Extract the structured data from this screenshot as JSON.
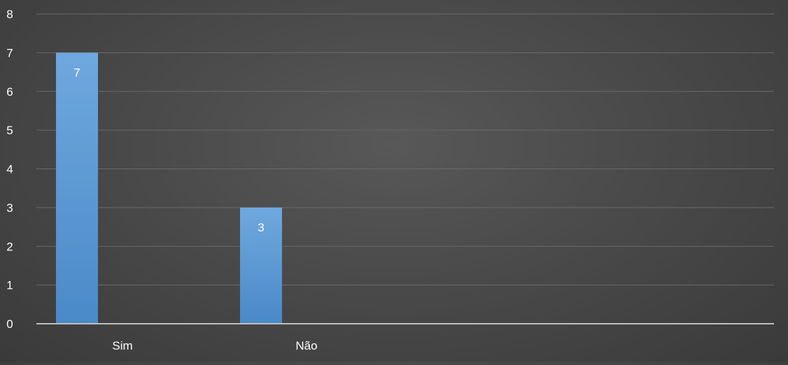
{
  "chart_data": {
    "type": "bar",
    "categories": [
      "Sim",
      "Não"
    ],
    "values": [
      7,
      3
    ],
    "ylim": [
      0,
      8
    ],
    "yticks": [
      0,
      1,
      2,
      3,
      4,
      5,
      6,
      7,
      8
    ],
    "grid": true,
    "legend": "none",
    "data_labels": true,
    "colors": {
      "bar": "#5b9bd5",
      "bar_dark": "#4a89c8",
      "bar_light": "#6fa8de",
      "grid": "#6a6a6a",
      "axis": "#bfbfbf",
      "tick_label": "#ffffff",
      "data_label": "#ffffff"
    }
  }
}
